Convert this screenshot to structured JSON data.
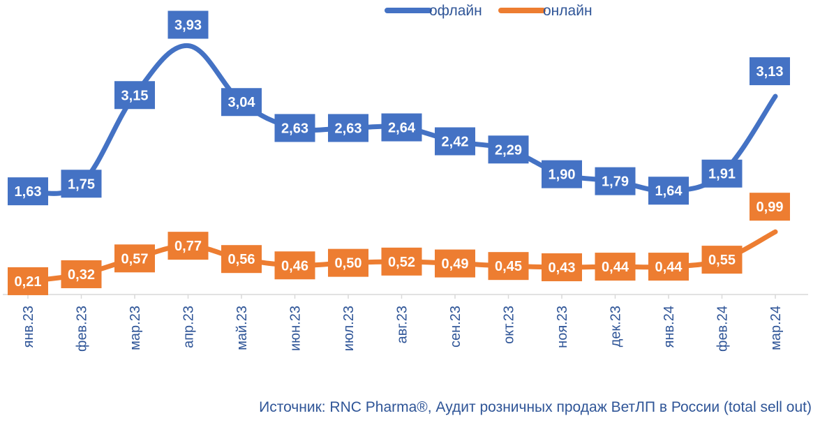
{
  "chart_data": {
    "type": "line",
    "categories": [
      "янв.23",
      "фев.23",
      "мар.23",
      "апр.23",
      "май.23",
      "июн.23",
      "июл.23",
      "авг.23",
      "сен.23",
      "окт.23",
      "ноя.23",
      "дек.23",
      "янв.24",
      "фев.24",
      "мар.24"
    ],
    "series": [
      {
        "name": "офлайн",
        "color": "#4472C4",
        "values": [
          1.63,
          1.75,
          3.15,
          3.93,
          3.04,
          2.63,
          2.63,
          2.64,
          2.42,
          2.29,
          1.9,
          1.79,
          1.64,
          1.91,
          3.13
        ],
        "labels": [
          "1,63",
          "1,75",
          "3,15",
          "3,93",
          "3,04",
          "2,63",
          "2,63",
          "2,64",
          "2,42",
          "2,29",
          "1,90",
          "1,79",
          "1,64",
          "1,91",
          "3,13"
        ]
      },
      {
        "name": "онлайн",
        "color": "#ED7D31",
        "values": [
          0.21,
          0.32,
          0.57,
          0.77,
          0.56,
          0.46,
          0.5,
          0.52,
          0.49,
          0.45,
          0.43,
          0.44,
          0.44,
          0.55,
          0.99
        ],
        "labels": [
          "0,21",
          "0,32",
          "0,57",
          "0,77",
          "0,56",
          "0,46",
          "0,50",
          "0,52",
          "0,49",
          "0,45",
          "0,43",
          "0,44",
          "0,44",
          "0,55",
          "0,99"
        ]
      }
    ],
    "ylim": [
      0,
      4.2
    ],
    "smooth": true,
    "legend": "top"
  },
  "source_text": "Источник: RNC Pharma®, Аудит розничных продаж ВетЛП в России (total sell out)"
}
